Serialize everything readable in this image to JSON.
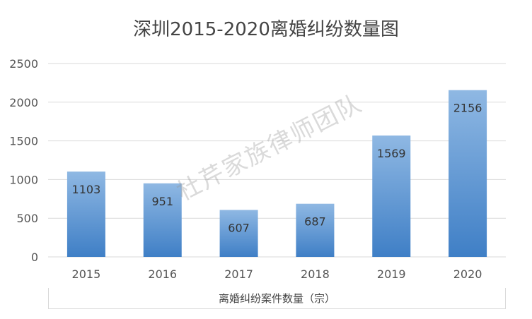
{
  "colors": {
    "bar_top": "#8fb8e3",
    "bar_bottom": "#3f7fc6",
    "grid": "#d9d9d9",
    "text": "#444444"
  },
  "watermark": "杜芹家族律师团队",
  "chart_data": {
    "type": "bar",
    "title": "深圳2015-2020离婚纠纷数量图",
    "categories": [
      "2015",
      "2016",
      "2017",
      "2018",
      "2019",
      "2020"
    ],
    "series": [
      {
        "name": "离婚纠纷案件数量（宗）",
        "values": [
          1103,
          951,
          607,
          687,
          1569,
          2156
        ]
      }
    ],
    "data_labels": [
      "1103",
      "951",
      "607",
      "687",
      "1569",
      "2156"
    ],
    "yticks": [
      0,
      500,
      1000,
      1500,
      2000,
      2500
    ],
    "ylim": [
      0,
      2500
    ],
    "xlabel": "",
    "ylabel": "",
    "grid": true,
    "legend": "bottom"
  }
}
